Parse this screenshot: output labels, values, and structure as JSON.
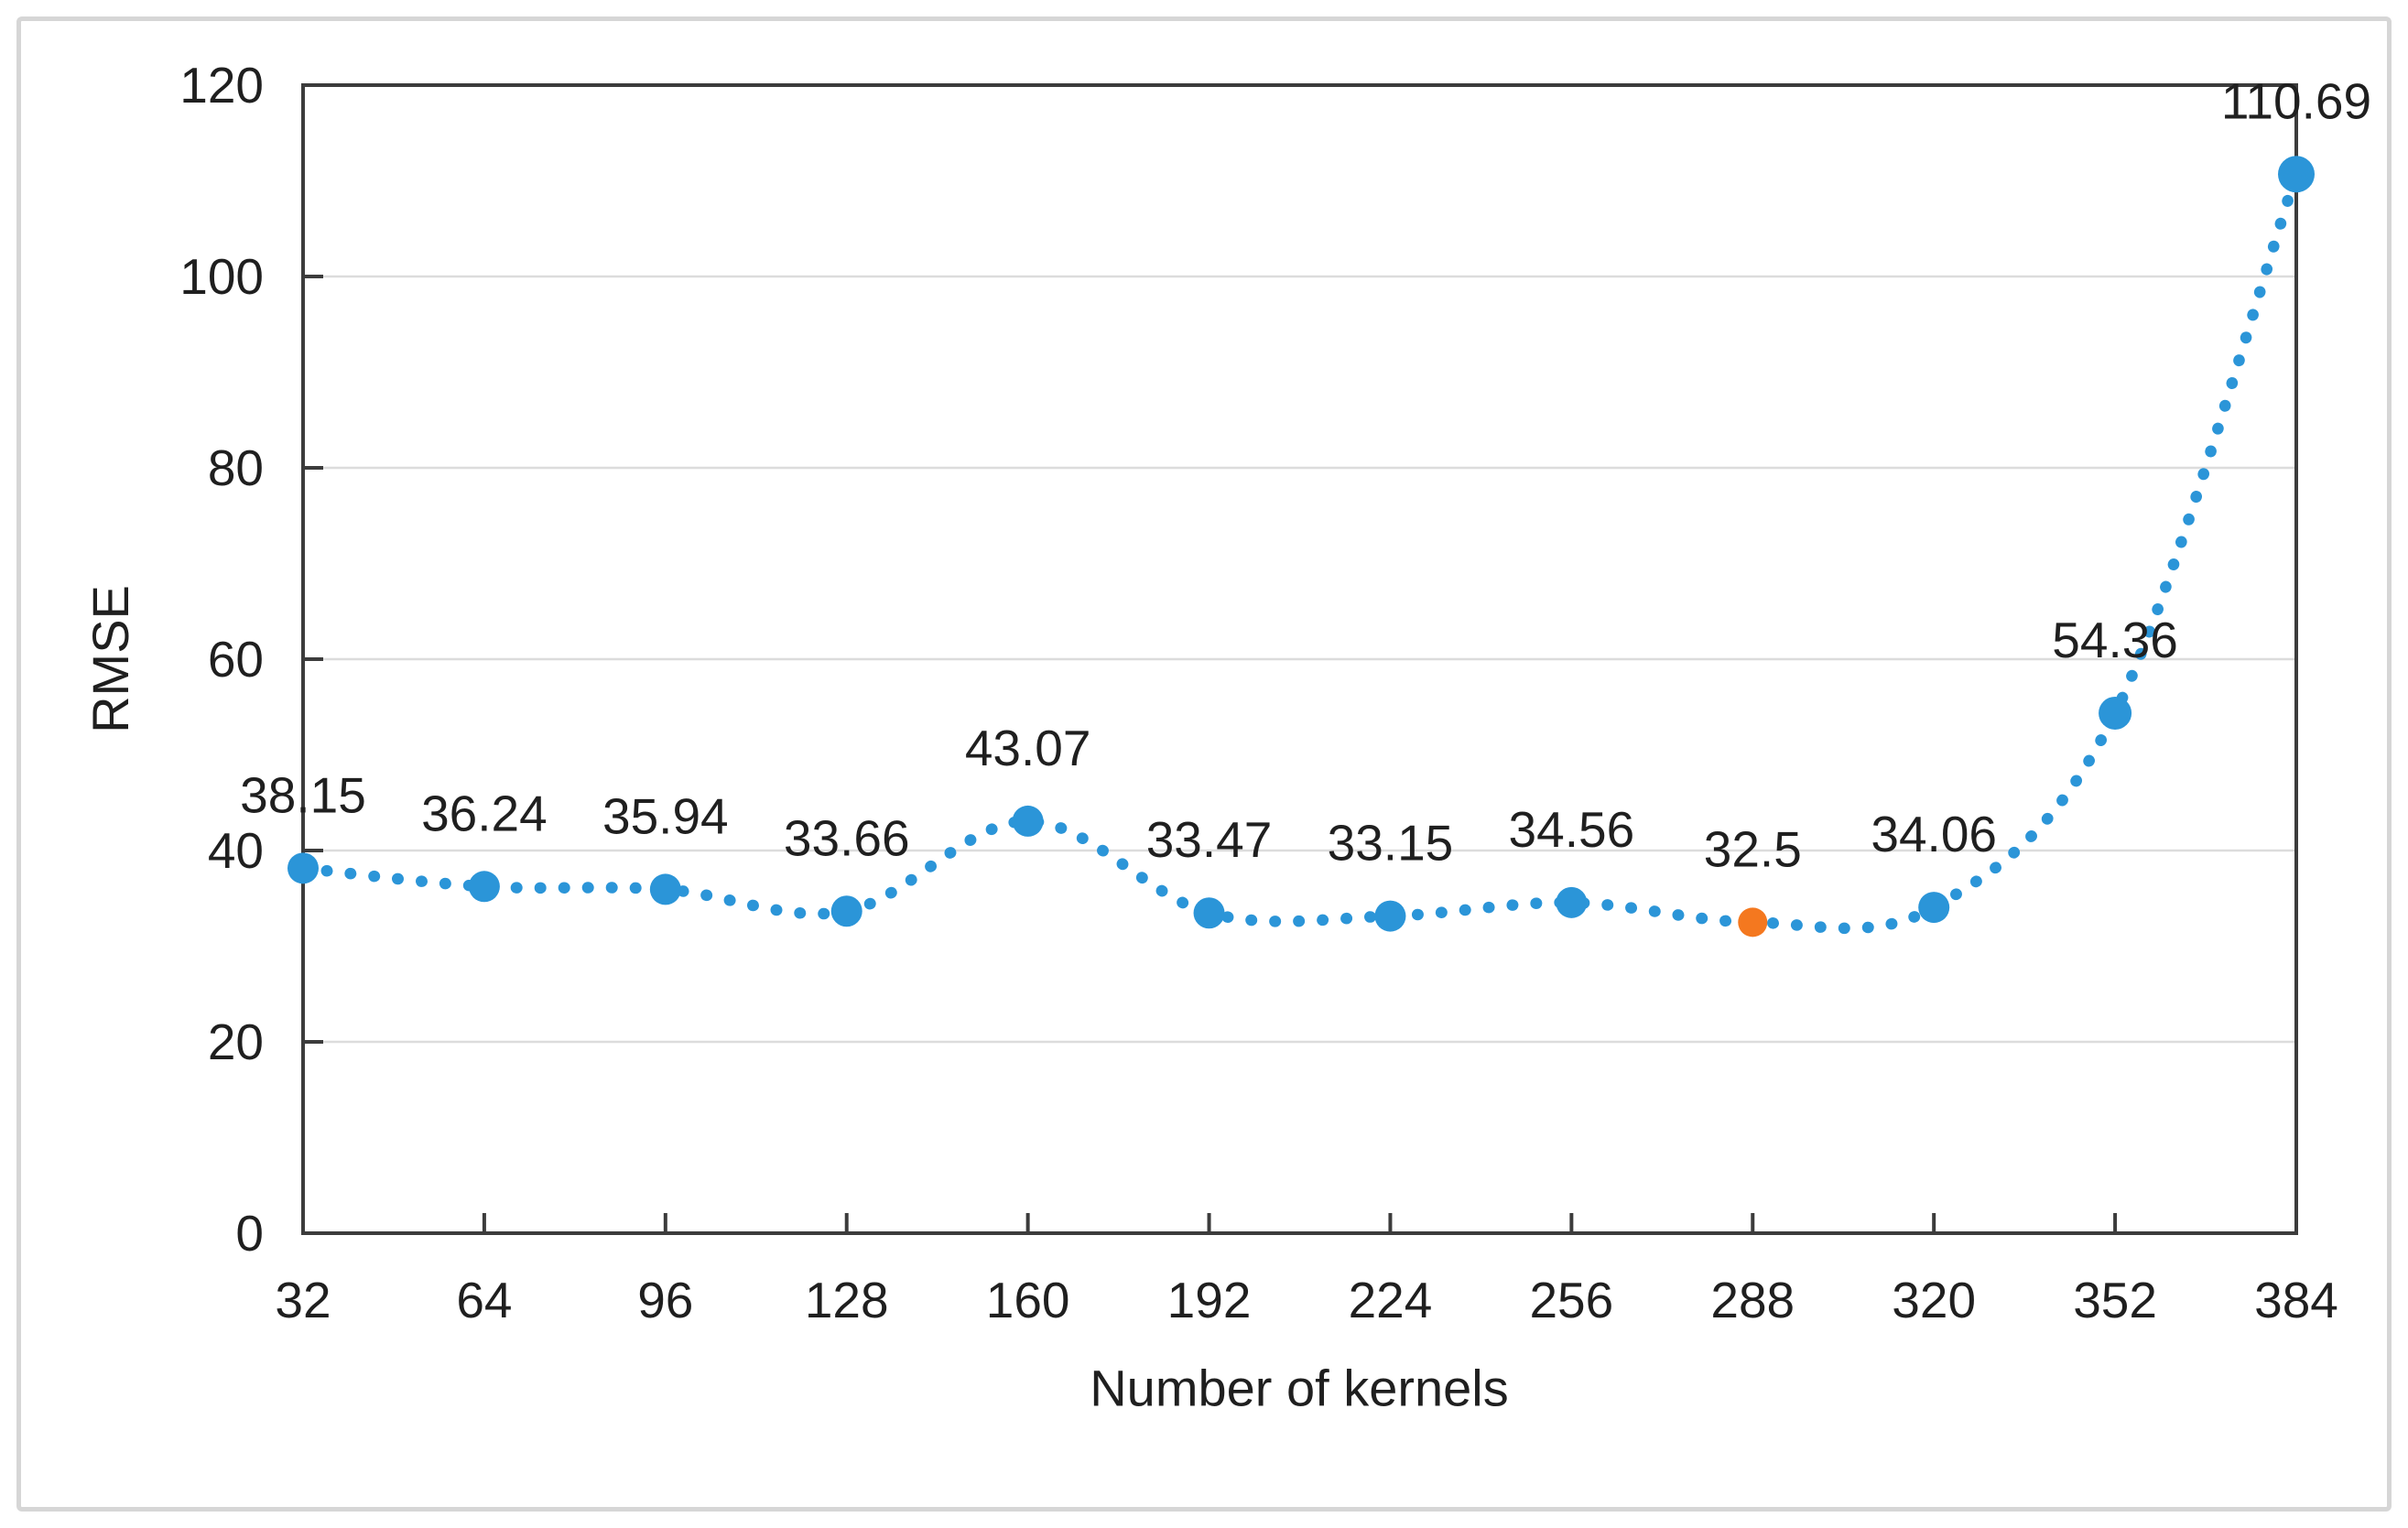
{
  "chart_data": {
    "type": "line",
    "title": "",
    "xlabel": "Number of kernels",
    "ylabel": "RMSE",
    "x": [
      32,
      64,
      96,
      128,
      160,
      192,
      224,
      256,
      288,
      320,
      352,
      384
    ],
    "series": [
      {
        "name": "RMSE",
        "values": [
          38.15,
          36.24,
          35.94,
          33.66,
          43.07,
          33.47,
          33.15,
          34.56,
          32.5,
          34.06,
          54.36,
          110.69
        ]
      }
    ],
    "point_labels": [
      "38.15",
      "36.24",
      "35.94",
      "33.66",
      "43.07",
      "33.47",
      "33.15",
      "34.56",
      "32.5",
      "34.06",
      "54.36",
      "110.69"
    ],
    "highlight_point": {
      "x": 288,
      "value": 32.5,
      "label": "32.5"
    },
    "xticks": [
      "32",
      "64",
      "96",
      "128",
      "160",
      "192",
      "224",
      "256",
      "288",
      "320",
      "352",
      "384"
    ],
    "yticks": [
      "0",
      "20",
      "40",
      "60",
      "80",
      "100",
      "120"
    ],
    "xlim": [
      32,
      384
    ],
    "ylim": [
      0,
      120
    ],
    "grid": "horizontal",
    "legend": "none",
    "line_style": "dotted-smooth",
    "colors": {
      "series": "#2b95d8",
      "highlight": "#f4781f",
      "grid": "#dcdcdc",
      "axis": "#3c3c3c",
      "text": "#1f1f1f",
      "frame_border": "#d6d6d6",
      "background": "#ffffff"
    }
  }
}
